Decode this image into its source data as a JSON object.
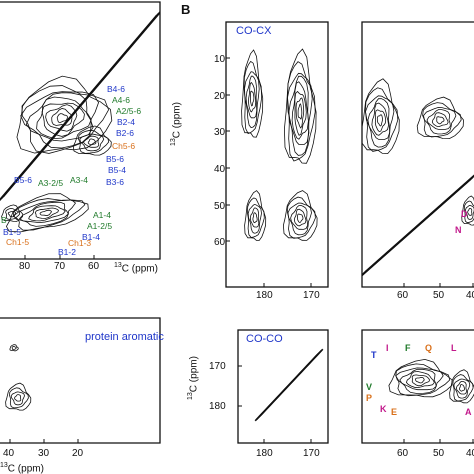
{
  "panel_label": "B",
  "chart_data": [
    {
      "type": "contour",
      "id": "left-top",
      "xlabel_prefix": "13",
      "xlabel": "C (ppm)",
      "xticks": [
        "80",
        "70",
        "60"
      ],
      "labels_blue": [
        "B4-6",
        "B2-4",
        "B2-6",
        "B5-6",
        "B5-4",
        "B3-6",
        "B5-6",
        "B1-4",
        "B1-5",
        "B1-2"
      ],
      "labels_green": [
        "A4-6",
        "A2/5-6",
        "A3-2/5",
        "A3-4",
        "A1-4",
        "A1-2/5"
      ],
      "labels_orange": [
        "Ch5-6",
        "Ch1-5",
        "Ch1-3",
        "Ch1-5"
      ],
      "labels_misc": [
        "B"
      ]
    },
    {
      "type": "contour",
      "id": "left-bottom",
      "title": "protein aromatic",
      "xlabel_prefix": "13",
      "xlabel": "C (ppm)",
      "xticks": [
        "40",
        "30",
        "20"
      ]
    },
    {
      "type": "contour",
      "id": "CO-CX",
      "title": "CO-CX",
      "ylabel_prefix": "13",
      "ylabel": "C (ppm)",
      "yticks": [
        "10",
        "20",
        "30",
        "40",
        "50",
        "60"
      ],
      "xticks": [
        "180",
        "170"
      ]
    },
    {
      "type": "contour",
      "id": "right-top",
      "xticks": [
        "60",
        "50",
        "40"
      ],
      "labels": [
        "D",
        "N"
      ]
    },
    {
      "type": "contour",
      "id": "CO-CO",
      "title": "CO-CO",
      "ylabel_prefix": "13",
      "ylabel": "C (ppm)",
      "yticks": [
        "170",
        "180"
      ],
      "xticks": [
        "180",
        "170"
      ]
    },
    {
      "type": "contour",
      "id": "right-bottom",
      "xticks": [
        "60",
        "50",
        "40"
      ],
      "residue_labels": [
        "T",
        "I",
        "F",
        "Q",
        "L",
        "V",
        "P",
        "K",
        "E",
        "A"
      ]
    }
  ],
  "colors": {
    "blue": "#1f36c9",
    "green": "#1f7a2a",
    "orange": "#d9701b",
    "magenta": "#c2188b",
    "ink": "#111111"
  }
}
